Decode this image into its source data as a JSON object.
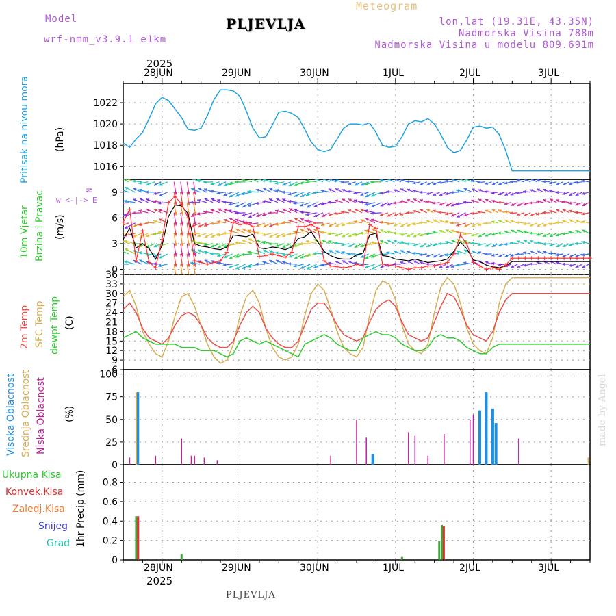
{
  "header": {
    "model_label": "Model",
    "model_name": "wrf-nmm_v3.9.1 e1km",
    "title": "PLJEVLJA",
    "subtitle": "Meteogram",
    "coords": "lon,lat (19.31E, 43.35N)",
    "elevation": "Nadmorska Visina 788m",
    "model_elevation": "Nadmorska Visina u modelu 809.691m",
    "footer_station": "PLJEVLJA",
    "watermark": "made by Angel",
    "year_top": "2025",
    "year_bottom": "2025"
  },
  "colors": {
    "pressure": "#1fa3e0",
    "temp2m": "#e8504a",
    "sfc_temp": "#d8ac50",
    "dewpoint": "#2ecc2e",
    "high_cloud": "#1f8fe0",
    "mid_cloud": "#d8ac50",
    "low_cloud": "#c0209a",
    "total_precip": "#3aa83a",
    "conv_precip": "#e03030",
    "frozen_precip": "#f07830",
    "snow": "#4040e0",
    "graupel": "#20c0b0",
    "wind_line": "#000000",
    "gust": "#ff3030",
    "grid": "#999999"
  },
  "chart_data": [
    {
      "type": "line",
      "panel": "pressure",
      "ylabel": "Pritisak na nivou mora",
      "unit": "(hPa)",
      "ylim": [
        1014.8,
        1023.8
      ],
      "yticks": [
        "1016",
        "1018",
        "1020",
        "1022"
      ],
      "xlim_hours": [
        0,
        144
      ],
      "x": [
        0,
        2,
        4,
        6,
        8,
        10,
        12,
        14,
        16,
        18,
        20,
        22,
        24,
        26,
        28,
        30,
        32,
        34,
        36,
        38,
        40,
        42,
        44,
        46,
        48,
        50,
        52,
        54,
        56,
        58,
        60,
        62,
        64,
        66,
        68,
        70,
        72,
        74,
        76,
        78,
        80,
        82,
        84,
        86,
        88,
        90,
        92,
        94,
        96,
        98,
        100,
        102,
        104,
        106,
        108,
        110,
        112,
        114,
        116,
        118,
        120,
        122,
        124,
        126,
        128,
        130,
        132,
        134,
        136,
        138,
        140,
        142,
        144
      ],
      "values": [
        1018.2,
        1017.8,
        1018.6,
        1019.2,
        1020.5,
        1021.9,
        1022.5,
        1022.2,
        1021.4,
        1020.6,
        1019.5,
        1019.4,
        1019.6,
        1020.8,
        1022.3,
        1023.2,
        1023.2,
        1023.1,
        1022.6,
        1021.2,
        1019.6,
        1018.7,
        1018.8,
        1019.9,
        1021.1,
        1021.2,
        1021.0,
        1020.6,
        1019.5,
        1018.3,
        1017.6,
        1017.4,
        1017.6,
        1018.6,
        1019.6,
        1020.0,
        1020.0,
        1019.9,
        1020.1,
        1019.2,
        1018.0,
        1017.8,
        1017.9,
        1018.8,
        1020.0,
        1020.3,
        1020.2,
        1020.5,
        1020.0,
        1019.0,
        1017.8,
        1017.3,
        1017.5,
        1018.5,
        1019.7,
        1019.8,
        1019.6,
        1019.7,
        1019.0,
        1017.5,
        1015.6,
        1015.6,
        1015.6,
        1015.6,
        1015.6,
        1015.6,
        1015.6,
        1015.6,
        1015.6,
        1015.6,
        1015.6,
        1015.6,
        1015.6
      ]
    },
    {
      "type": "line",
      "panel": "wind",
      "ylabel": "10m Vjetar",
      "ylabel2": "Brzina i Pravac",
      "unit": "(m/s)",
      "compass": "w <-|-> E",
      "compass_ns": "N",
      "ylim": [
        -0.6,
        10.5
      ],
      "yticks": [
        "0",
        "3",
        "6",
        "9"
      ],
      "series": [
        {
          "name": "wind_speed",
          "x": [
            0,
            2,
            4,
            6,
            8,
            10,
            12,
            14,
            16,
            18,
            20,
            22,
            24,
            26,
            28,
            30,
            32,
            34,
            36,
            38,
            40,
            42,
            44,
            46,
            48,
            50,
            52,
            54,
            56,
            58,
            60,
            62,
            64,
            66,
            68,
            70,
            72,
            74,
            76,
            78,
            80,
            82,
            84,
            86,
            88,
            90,
            92,
            94,
            96,
            98,
            100,
            102,
            104,
            106,
            108,
            110,
            112,
            114,
            116,
            118,
            120,
            122,
            124,
            126,
            128,
            130,
            132,
            134,
            136,
            138,
            140,
            142,
            144
          ],
          "values": [
            3.5,
            4.8,
            2.5,
            3.0,
            2.4,
            1.2,
            2.8,
            6.2,
            7.5,
            7.4,
            6.5,
            3.0,
            2.7,
            2.6,
            2.4,
            2.3,
            2.6,
            4.0,
            3.9,
            3.8,
            4.1,
            2.5,
            2.4,
            2.6,
            2.5,
            2.3,
            2.6,
            3.6,
            3.8,
            4.4,
            3.2,
            2.1,
            1.6,
            1.3,
            1.2,
            1.2,
            1.7,
            1.9,
            4.0,
            4.2,
            1.6,
            1.5,
            1.2,
            1.1,
            1.0,
            1.2,
            1.0,
            0.8,
            0.9,
            1.0,
            1.2,
            2.1,
            3.2,
            2.4,
            1.1,
            0.9,
            0.5,
            0.3,
            0.2,
            0.4,
            0.9,
            0.9,
            0.9,
            0.9,
            0.9,
            0.9,
            0.9,
            0.9,
            0.9,
            0.9,
            0.9,
            0.9,
            0.9
          ]
        },
        {
          "name": "gust",
          "x": [
            0,
            2,
            4,
            6,
            8,
            10,
            12,
            14,
            16,
            18,
            20,
            22,
            24,
            26,
            28,
            30,
            32,
            34,
            36,
            38,
            40,
            42,
            44,
            46,
            48,
            50,
            52,
            54,
            56,
            58,
            60,
            62,
            64,
            66,
            68,
            70,
            72,
            74,
            76,
            78,
            80,
            82,
            84,
            86,
            88,
            90,
            92,
            94,
            96,
            98,
            100,
            102,
            104,
            106,
            108,
            110,
            112,
            114,
            116,
            118,
            120,
            122,
            124,
            126,
            128,
            130,
            132,
            134,
            136,
            138,
            140,
            142,
            144
          ],
          "values": [
            5.5,
            7.0,
            1.0,
            4.5,
            0.8,
            0.2,
            3.5,
            7.8,
            8.5,
            7.6,
            6.0,
            1.0,
            0.8,
            0.6,
            0.8,
            1.0,
            2.0,
            5.5,
            5.2,
            5.4,
            5.0,
            1.5,
            1.6,
            1.8,
            1.6,
            1.4,
            2.0,
            5.0,
            5.0,
            5.2,
            4.8,
            1.0,
            0.4,
            0.3,
            0.2,
            0.3,
            0.6,
            0.4,
            5.2,
            4.8,
            0.6,
            0.5,
            0.4,
            0.2,
            0.0,
            0.2,
            0.2,
            0.4,
            0.4,
            0.6,
            0.8,
            1.8,
            4.0,
            3.0,
            0.8,
            0.4,
            0.0,
            0.2,
            0.0,
            0.5,
            1.3,
            1.3,
            1.3,
            1.3,
            1.3,
            1.3,
            1.3,
            1.3,
            1.3,
            1.3,
            1.3,
            1.3,
            1.3
          ]
        }
      ]
    },
    {
      "type": "line",
      "panel": "temperature",
      "ylabel": "2m Temp",
      "ylabel2": "SFC Temp",
      "ylabel3": "dewpt Temp",
      "unit": "(C)",
      "ylim": [
        6,
        36
      ],
      "yticks": [
        "6",
        "9",
        "12",
        "15",
        "18",
        "21",
        "24",
        "27",
        "30",
        "33",
        "36"
      ],
      "series": [
        {
          "name": "2m Temp",
          "x": [
            0,
            2,
            4,
            6,
            8,
            10,
            12,
            14,
            16,
            18,
            20,
            22,
            24,
            26,
            28,
            30,
            32,
            34,
            36,
            38,
            40,
            42,
            44,
            46,
            48,
            50,
            52,
            54,
            56,
            58,
            60,
            62,
            64,
            66,
            68,
            70,
            72,
            74,
            76,
            78,
            80,
            82,
            84,
            86,
            88,
            90,
            92,
            94,
            96,
            98,
            100,
            102,
            104,
            106,
            108,
            110,
            112,
            114,
            116,
            118,
            120,
            122,
            124,
            126,
            128,
            130,
            132,
            134,
            136,
            138,
            140,
            142,
            144
          ],
          "values": [
            25,
            27,
            24,
            19,
            16,
            15,
            14,
            16,
            20,
            23,
            24,
            23,
            20,
            16,
            14,
            13,
            13,
            15,
            20,
            24,
            26,
            24,
            19,
            16,
            14,
            13,
            13,
            15,
            20,
            25,
            27,
            27,
            24,
            20,
            17,
            16,
            15,
            16,
            21,
            25,
            27,
            28,
            26,
            21,
            17,
            16,
            15,
            16,
            21,
            26,
            30,
            29,
            25,
            20,
            17,
            16,
            15,
            18,
            24,
            28,
            30,
            30,
            30,
            30,
            30,
            30,
            30,
            30,
            30,
            30,
            30,
            30,
            30
          ]
        },
        {
          "name": "SFC Temp",
          "x": [
            0,
            2,
            4,
            6,
            8,
            10,
            12,
            14,
            16,
            18,
            20,
            22,
            24,
            26,
            28,
            30,
            32,
            34,
            36,
            38,
            40,
            42,
            44,
            46,
            48,
            50,
            52,
            54,
            56,
            58,
            60,
            62,
            64,
            66,
            68,
            70,
            72,
            74,
            76,
            78,
            80,
            82,
            84,
            86,
            88,
            90,
            92,
            94,
            96,
            98,
            100,
            102,
            104,
            106,
            108,
            110,
            112,
            114,
            116,
            118,
            120,
            122,
            124,
            126,
            128,
            130,
            132,
            134,
            136,
            138,
            140,
            142,
            144
          ],
          "values": [
            29,
            31,
            26,
            18,
            14,
            11,
            10,
            15,
            23,
            29,
            30,
            26,
            20,
            14,
            10,
            8,
            9,
            14,
            23,
            29,
            31,
            27,
            19,
            13,
            10,
            9,
            10,
            14,
            23,
            30,
            33,
            31,
            25,
            18,
            13,
            11,
            10,
            13,
            23,
            31,
            34,
            33,
            28,
            20,
            14,
            12,
            11,
            14,
            24,
            32,
            35,
            33,
            27,
            19,
            14,
            12,
            11,
            16,
            27,
            33,
            35,
            35,
            35,
            35,
            35,
            35,
            35,
            35,
            35,
            35,
            35,
            35,
            35
          ]
        },
        {
          "name": "dewpt Temp",
          "x": [
            0,
            2,
            4,
            6,
            8,
            10,
            12,
            14,
            16,
            18,
            20,
            22,
            24,
            26,
            28,
            30,
            32,
            34,
            36,
            38,
            40,
            42,
            44,
            46,
            48,
            50,
            52,
            54,
            56,
            58,
            60,
            62,
            64,
            66,
            68,
            70,
            72,
            74,
            76,
            78,
            80,
            82,
            84,
            86,
            88,
            90,
            92,
            94,
            96,
            98,
            100,
            102,
            104,
            106,
            108,
            110,
            112,
            114,
            116,
            118,
            120,
            122,
            124,
            126,
            128,
            130,
            132,
            134,
            136,
            138,
            140,
            142,
            144
          ],
          "values": [
            16,
            17,
            18,
            16,
            15,
            14,
            14,
            14,
            14,
            13,
            13,
            13,
            12,
            12,
            12,
            11,
            10,
            11,
            15,
            16,
            15,
            14,
            15,
            14,
            13,
            12,
            11,
            10,
            14,
            15,
            16,
            17,
            16,
            14,
            13,
            12,
            12,
            16,
            17,
            18,
            17,
            17,
            16,
            14,
            13,
            12,
            12,
            13,
            16,
            17,
            16,
            16,
            15,
            13,
            12,
            11,
            11,
            13,
            14,
            14,
            14,
            14,
            14,
            14,
            14,
            14,
            14,
            14,
            14,
            14,
            14,
            14,
            14
          ]
        }
      ]
    },
    {
      "type": "bar",
      "panel": "clouds",
      "ylabel": "Visoka Oblacnost",
      "ylabel2": "Srednja Oblacnost",
      "ylabel3": "Niska Oblacnost",
      "unit": "(%)",
      "ylim": [
        0,
        105
      ],
      "yticks": [
        "0",
        "25",
        "50",
        "75",
        "100"
      ],
      "series": [
        {
          "name": "Visoka Oblacnost",
          "x": [
            4.5,
            77,
            110,
            112,
            114,
            115
          ],
          "values": [
            80,
            12,
            60,
            80,
            62,
            46
          ]
        },
        {
          "name": "Srednja Oblacnost",
          "x": [
            4,
            143.5
          ],
          "values": [
            80,
            8
          ]
        },
        {
          "name": "Niska Oblacnost",
          "x": [
            2,
            10,
            18,
            21,
            22,
            25,
            29,
            64,
            72,
            75,
            88,
            90,
            94,
            99,
            107,
            108,
            122
          ],
          "values": [
            8,
            10,
            29,
            10,
            10,
            8,
            5,
            10,
            50,
            30,
            36,
            32,
            10,
            34,
            50,
            55,
            29
          ]
        }
      ]
    },
    {
      "type": "bar",
      "panel": "precipitation",
      "ylabel": "1hr Precip (mm)",
      "ylim": [
        0,
        0.98
      ],
      "yticks": [
        "0",
        "0.2",
        "0.4",
        "0.6",
        "0.8"
      ],
      "legend": [
        "Ukupna Kisa",
        "Konvek.Kisa",
        "Zaledj.Kisa",
        "Snijeg",
        "Grad"
      ],
      "series": [
        {
          "name": "Ukupna Kisa",
          "x": [
            4,
            18,
            86,
            97.5,
            98.3
          ],
          "values": [
            0.45,
            0.06,
            0.03,
            0.19,
            0.36
          ]
        },
        {
          "name": "Konvek.Kisa",
          "x": [
            4.6,
            98.9
          ],
          "values": [
            0.45,
            0.35
          ]
        }
      ]
    }
  ],
  "x_axis": {
    "top_labels": [
      "28JUN",
      "29JUN",
      "30JUN",
      "1JUL",
      "2JUL",
      "3JUL"
    ],
    "bottom_labels": [
      "28JUN",
      "29JUN",
      "30JUN",
      "1JUL",
      "2JUL",
      "3JUL"
    ],
    "day_hours": [
      12,
      36,
      60,
      84,
      108,
      132
    ]
  }
}
